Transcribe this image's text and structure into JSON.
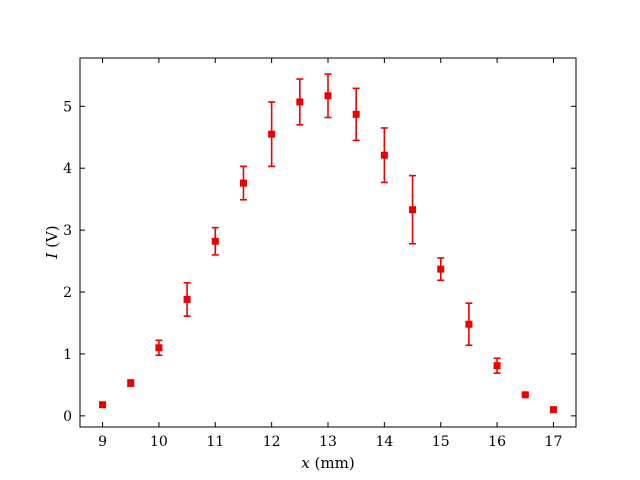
{
  "chart_data": {
    "type": "scatter",
    "title": "",
    "xlabel": {
      "var": "x",
      "unit": " (mm)"
    },
    "ylabel": {
      "var": "I",
      "unit": " (V)"
    },
    "xlim": [
      8.6,
      17.4
    ],
    "ylim": [
      -0.18,
      5.78
    ],
    "xticks": [
      9,
      10,
      11,
      12,
      13,
      14,
      15,
      16,
      17
    ],
    "yticks": [
      0,
      1,
      2,
      3,
      4,
      5
    ],
    "grid": false,
    "marker_color": "#ee0000",
    "series": [
      {
        "x": [
          9,
          9.5,
          10,
          10.5,
          11,
          11.5,
          12,
          12.5,
          13,
          13.5,
          14,
          14.5,
          15,
          15.5,
          16,
          16.5,
          17
        ],
        "y": [
          0.18,
          0.53,
          1.1,
          1.88,
          2.82,
          3.76,
          4.55,
          5.07,
          5.17,
          4.87,
          4.21,
          3.33,
          2.37,
          1.48,
          0.81,
          0.34,
          0.1
        ],
        "yerr": [
          0.02,
          0.05,
          0.12,
          0.27,
          0.22,
          0.27,
          0.52,
          0.37,
          0.35,
          0.42,
          0.44,
          0.55,
          0.18,
          0.34,
          0.12,
          0.02,
          0.02
        ]
      }
    ]
  }
}
